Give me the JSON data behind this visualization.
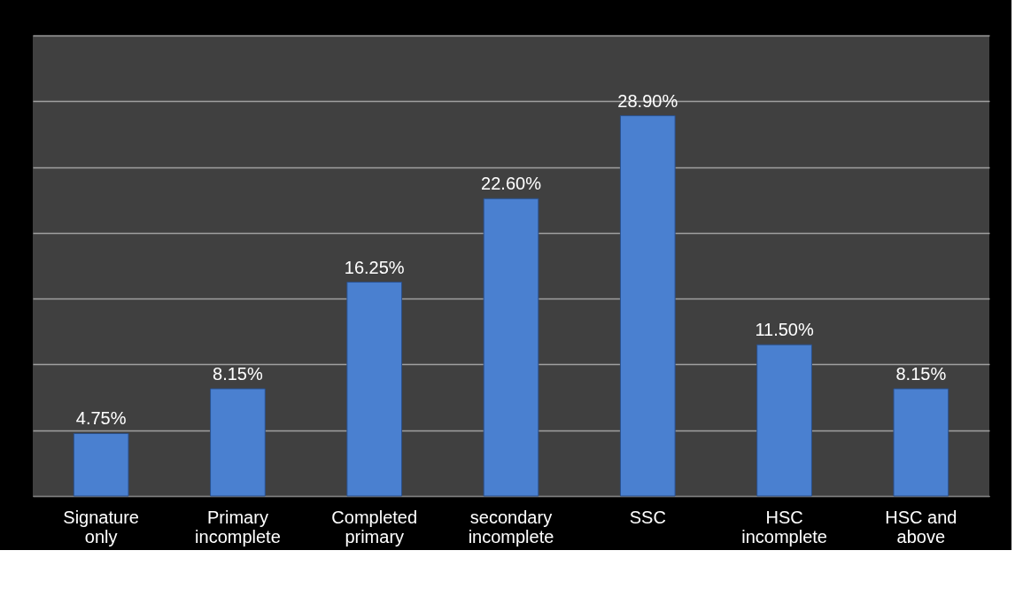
{
  "chart_data": {
    "type": "bar",
    "categories": [
      "Signature only",
      "Primary incomplete",
      "Completed primary",
      "secondary incomplete",
      "SSC",
      "HSC incomplete",
      "HSC and above"
    ],
    "values": [
      4.75,
      8.15,
      16.25,
      22.6,
      28.9,
      11.5,
      8.15
    ],
    "value_labels": [
      "4.75%",
      "8.15%",
      "16.25%",
      "22.60%",
      "28.90%",
      "11.50%",
      "8.15%"
    ],
    "color": "#4a80d0",
    "ylim": [
      0,
      35
    ],
    "yticks": [
      {
        "value": 0,
        "label": null
      },
      {
        "value": 5,
        "label": null
      },
      {
        "value": 10,
        "label": null
      },
      {
        "value": 15,
        "label": null
      },
      {
        "value": 20,
        "label": null
      },
      {
        "value": 25,
        "label": null
      },
      {
        "value": 30,
        "label": null
      },
      {
        "value": 35,
        "label": null
      }
    ],
    "grid": "y",
    "tick_labels": "x"
  }
}
